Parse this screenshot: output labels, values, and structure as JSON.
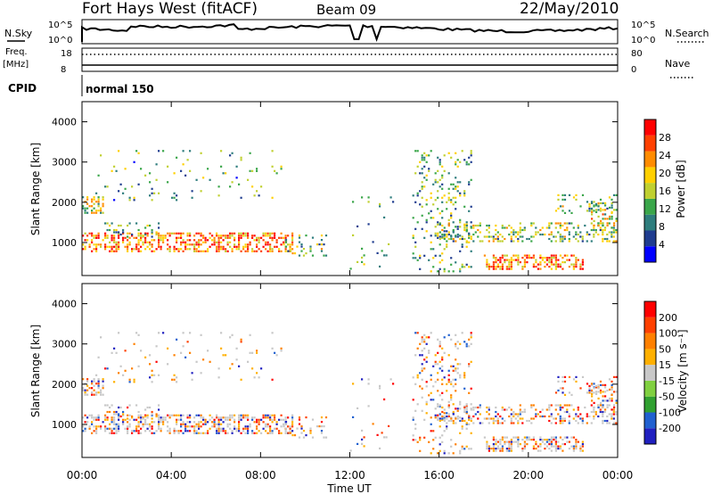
{
  "header": {
    "station": "Fort Hays West (fitACF)",
    "beam": "Beam 09",
    "date": "22/May/2010"
  },
  "status_panels": {
    "nsky_label": "N.Sky",
    "nsearch_label": "N.Search",
    "noise_ticks": [
      "10^5",
      "10^0"
    ],
    "freq_label_1": "Freq.",
    "freq_label_2": "[MHz]",
    "freq_ticks": [
      "18",
      "8"
    ],
    "nave_label": "Nave",
    "nave_ticks": [
      "80",
      "0"
    ],
    "cpid_label": "CPID",
    "cpid_value": "normal 150"
  },
  "colors": {
    "power_scale": [
      "#0000ff",
      "#1f3c8f",
      "#2e7d7d",
      "#3aa64a",
      "#c0d030",
      "#ffd000",
      "#ff8c00",
      "#ff4000",
      "#ff0000"
    ],
    "velocity_scale": [
      "#2020c0",
      "#2060d0",
      "#30a030",
      "#80d040",
      "#c8c8c8",
      "#ffb000",
      "#ff8000",
      "#ff4000",
      "#ff0000"
    ]
  },
  "chart_data": [
    {
      "type": "heatmap",
      "name": "power",
      "ylabel": "Slant Range [km]",
      "ylim": [
        180,
        4500
      ],
      "yticks": [
        "1000",
        "2000",
        "3000",
        "4000"
      ],
      "xlim": [
        "00:00",
        "24:00"
      ],
      "xticks": [
        "00:00",
        "04:00",
        "08:00",
        "12:00",
        "16:00",
        "20:00",
        "00:00"
      ],
      "colorbar_label": "Power [dB]",
      "colorbar_ticks": [
        "4",
        "8",
        "12",
        "16",
        "20",
        "24",
        "28"
      ],
      "colorbar_range": [
        0,
        30
      ]
    },
    {
      "type": "heatmap",
      "name": "velocity",
      "ylabel": "Slant Range [km]",
      "ylim": [
        180,
        4500
      ],
      "yticks": [
        "1000",
        "2000",
        "3000",
        "4000"
      ],
      "xlim": [
        "00:00",
        "24:00"
      ],
      "xticks": [
        "00:00",
        "04:00",
        "08:00",
        "12:00",
        "16:00",
        "20:00",
        "00:00"
      ],
      "xlabel": "Time UT",
      "colorbar_label": "Velocity [m s⁻¹]",
      "colorbar_ticks": [
        "200",
        "100",
        "50",
        "15",
        "-15",
        "-50",
        "-100",
        "-200"
      ],
      "colorbar_range": [
        -250,
        250
      ]
    }
  ]
}
